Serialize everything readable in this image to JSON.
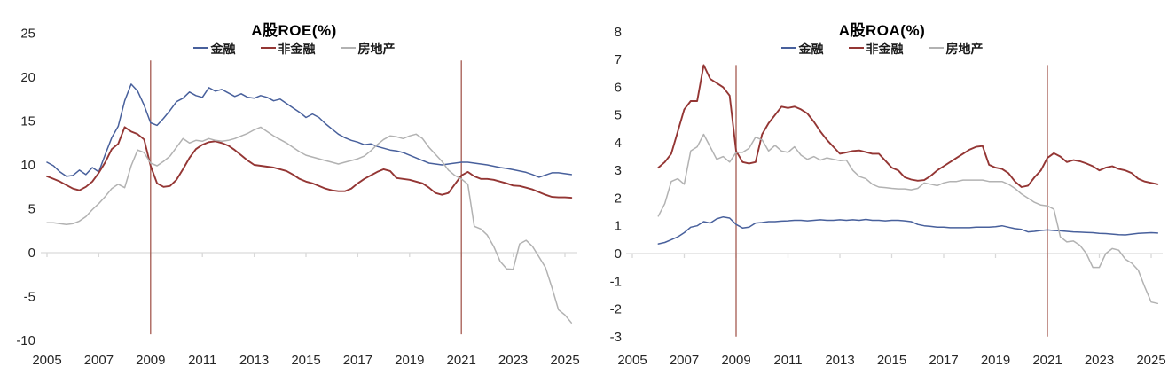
{
  "page": {
    "background": "#ffffff"
  },
  "chart_data": [
    {
      "type": "line",
      "title": "A股ROE(%)",
      "xlabel": "",
      "ylabel": "",
      "x_base": 2005,
      "x_start": 2005.0,
      "x_step": 0.25,
      "xticks": [
        2005,
        2007,
        2009,
        2011,
        2013,
        2015,
        2017,
        2019,
        2021,
        2023,
        2025
      ],
      "yticks": [
        25,
        20,
        15,
        10,
        5,
        0,
        -5,
        -10
      ],
      "ylim": [
        -10,
        25
      ],
      "grid": "zero-line-only",
      "legend_position": "top-center",
      "ref_lines": {
        "x": [
          2009,
          2021
        ],
        "color": "#a45a50",
        "y_range": [
          -9.3,
          21.9
        ]
      },
      "series": [
        {
          "name": "金融",
          "key": "financials",
          "color": "#48609c",
          "width": 1.5,
          "values": [
            10.3,
            9.9,
            9.2,
            8.7,
            8.8,
            9.4,
            8.9,
            9.7,
            9.2,
            11.2,
            13.1,
            14.4,
            17.3,
            19.2,
            18.4,
            16.8,
            14.8,
            14.5,
            15.3,
            16.2,
            17.2,
            17.6,
            18.3,
            17.9,
            17.7,
            18.8,
            18.4,
            18.6,
            18.2,
            17.8,
            18.1,
            17.7,
            17.6,
            17.9,
            17.7,
            17.3,
            17.5,
            17.0,
            16.5,
            16.0,
            15.4,
            15.8,
            15.4,
            14.7,
            14.1,
            13.5,
            13.1,
            12.8,
            12.6,
            12.3,
            12.4,
            12.1,
            11.9,
            11.7,
            11.6,
            11.4,
            11.1,
            10.8,
            10.5,
            10.2,
            10.1,
            10.0,
            10.1,
            10.2,
            10.3,
            10.3,
            10.2,
            10.1,
            10.0,
            9.85,
            9.7,
            9.6,
            9.45,
            9.3,
            9.15,
            8.9,
            8.6,
            8.85,
            9.1,
            9.1,
            9.0,
            8.9
          ]
        },
        {
          "name": "非金融",
          "key": "non-financials",
          "color": "#943634",
          "width": 1.9,
          "values": [
            8.7,
            8.4,
            8.1,
            7.7,
            7.3,
            7.1,
            7.5,
            8.1,
            9.1,
            10.3,
            11.8,
            12.4,
            14.3,
            13.8,
            13.5,
            12.9,
            9.9,
            7.9,
            7.5,
            7.6,
            8.3,
            9.5,
            10.8,
            11.8,
            12.3,
            12.6,
            12.7,
            12.5,
            12.2,
            11.7,
            11.1,
            10.5,
            10.0,
            9.9,
            9.8,
            9.7,
            9.5,
            9.3,
            8.9,
            8.4,
            8.1,
            7.9,
            7.6,
            7.3,
            7.1,
            7.0,
            7.0,
            7.3,
            7.9,
            8.4,
            8.8,
            9.2,
            9.5,
            9.3,
            8.5,
            8.4,
            8.3,
            8.1,
            7.9,
            7.4,
            6.8,
            6.6,
            6.8,
            7.8,
            8.8,
            9.2,
            8.7,
            8.4,
            8.4,
            8.3,
            8.1,
            7.9,
            7.65,
            7.6,
            7.4,
            7.2,
            6.9,
            6.6,
            6.35,
            6.3,
            6.3,
            6.25
          ]
        },
        {
          "name": "房地产",
          "key": "real-estate",
          "color": "#b2b2b2",
          "width": 1.5,
          "values": [
            3.4,
            3.4,
            3.3,
            3.2,
            3.3,
            3.6,
            4.1,
            4.9,
            5.6,
            6.4,
            7.3,
            7.8,
            7.4,
            9.9,
            11.7,
            11.4,
            10.2,
            9.9,
            10.4,
            11.0,
            12.0,
            13.0,
            12.5,
            12.8,
            12.7,
            13.0,
            12.8,
            12.7,
            12.8,
            13.0,
            13.3,
            13.6,
            14.0,
            14.3,
            13.8,
            13.3,
            12.9,
            12.5,
            12.0,
            11.5,
            11.1,
            10.9,
            10.7,
            10.5,
            10.3,
            10.1,
            10.3,
            10.5,
            10.7,
            11.0,
            11.6,
            12.3,
            12.9,
            13.3,
            13.2,
            13.0,
            13.3,
            13.5,
            13.0,
            12.0,
            11.2,
            10.4,
            9.4,
            8.8,
            8.4,
            7.8,
            3.0,
            2.7,
            2.0,
            0.7,
            -1.0,
            -1.85,
            -1.9,
            1.0,
            1.4,
            0.7,
            -0.5,
            -1.7,
            -4.0,
            -6.5,
            -7.1,
            -8.0
          ]
        }
      ]
    },
    {
      "type": "line",
      "title": "A股ROA(%)",
      "xlabel": "",
      "ylabel": "",
      "x_base": 2005,
      "x_start": 2006.0,
      "x_step": 0.25,
      "xticks": [
        2005,
        2007,
        2009,
        2011,
        2013,
        2015,
        2017,
        2019,
        2021,
        2023,
        2025
      ],
      "yticks": [
        8,
        7,
        6,
        5,
        4,
        3,
        2,
        1,
        0,
        -1,
        -2,
        -3
      ],
      "ylim": [
        -3,
        8
      ],
      "grid": "zero-line-only",
      "legend_position": "top-center",
      "ref_lines": {
        "x": [
          2009,
          2021
        ],
        "color": "#a45a50",
        "y_range": [
          -3,
          6.8
        ]
      },
      "series": [
        {
          "name": "金融",
          "key": "financials",
          "color": "#48609c",
          "width": 1.5,
          "values": [
            0.35,
            0.4,
            0.5,
            0.6,
            0.75,
            0.95,
            1.0,
            1.15,
            1.1,
            1.25,
            1.32,
            1.28,
            1.05,
            0.92,
            0.95,
            1.1,
            1.12,
            1.15,
            1.15,
            1.17,
            1.18,
            1.2,
            1.2,
            1.18,
            1.2,
            1.22,
            1.2,
            1.2,
            1.22,
            1.2,
            1.22,
            1.2,
            1.23,
            1.2,
            1.2,
            1.18,
            1.2,
            1.2,
            1.18,
            1.15,
            1.05,
            1.0,
            0.98,
            0.95,
            0.95,
            0.93,
            0.93,
            0.93,
            0.93,
            0.95,
            0.95,
            0.95,
            0.97,
            1.0,
            0.95,
            0.9,
            0.87,
            0.78,
            0.8,
            0.83,
            0.85,
            0.83,
            0.82,
            0.8,
            0.78,
            0.77,
            0.76,
            0.75,
            0.73,
            0.72,
            0.7,
            0.68,
            0.67,
            0.7,
            0.73,
            0.74,
            0.75,
            0.74
          ]
        },
        {
          "name": "非金融",
          "key": "non-financials",
          "color": "#943634",
          "width": 1.9,
          "values": [
            3.1,
            3.3,
            3.6,
            4.4,
            5.2,
            5.5,
            5.5,
            6.8,
            6.3,
            6.15,
            6.0,
            5.7,
            3.7,
            3.3,
            3.25,
            3.3,
            4.3,
            4.7,
            5.0,
            5.3,
            5.25,
            5.3,
            5.2,
            5.05,
            4.75,
            4.4,
            4.1,
            3.85,
            3.6,
            3.65,
            3.7,
            3.72,
            3.66,
            3.6,
            3.6,
            3.35,
            3.1,
            3.0,
            2.75,
            2.67,
            2.63,
            2.65,
            2.8,
            3.0,
            3.15,
            3.3,
            3.45,
            3.6,
            3.75,
            3.85,
            3.88,
            3.2,
            3.1,
            3.05,
            2.9,
            2.6,
            2.4,
            2.45,
            2.75,
            3.0,
            3.45,
            3.62,
            3.5,
            3.3,
            3.37,
            3.33,
            3.25,
            3.15,
            3.0,
            3.1,
            3.15,
            3.05,
            3.0,
            2.9,
            2.7,
            2.6,
            2.55,
            2.5
          ]
        },
        {
          "name": "房地产",
          "key": "real-estate",
          "color": "#b2b2b2",
          "width": 1.5,
          "values": [
            1.35,
            1.8,
            2.6,
            2.7,
            2.5,
            3.7,
            3.85,
            4.3,
            3.85,
            3.4,
            3.5,
            3.3,
            3.65,
            3.65,
            3.8,
            4.2,
            4.1,
            3.7,
            3.9,
            3.7,
            3.65,
            3.85,
            3.55,
            3.4,
            3.5,
            3.37,
            3.45,
            3.4,
            3.35,
            3.37,
            3.0,
            2.78,
            2.7,
            2.5,
            2.4,
            2.38,
            2.35,
            2.33,
            2.33,
            2.3,
            2.35,
            2.55,
            2.5,
            2.45,
            2.55,
            2.6,
            2.6,
            2.65,
            2.65,
            2.65,
            2.65,
            2.6,
            2.6,
            2.6,
            2.5,
            2.35,
            2.15,
            2.0,
            1.85,
            1.75,
            1.72,
            1.6,
            0.6,
            0.42,
            0.45,
            0.3,
            0.0,
            -0.5,
            -0.5,
            0.0,
            0.18,
            0.12,
            -0.2,
            -0.35,
            -0.6,
            -1.2,
            -1.75,
            -1.8
          ]
        }
      ]
    }
  ]
}
